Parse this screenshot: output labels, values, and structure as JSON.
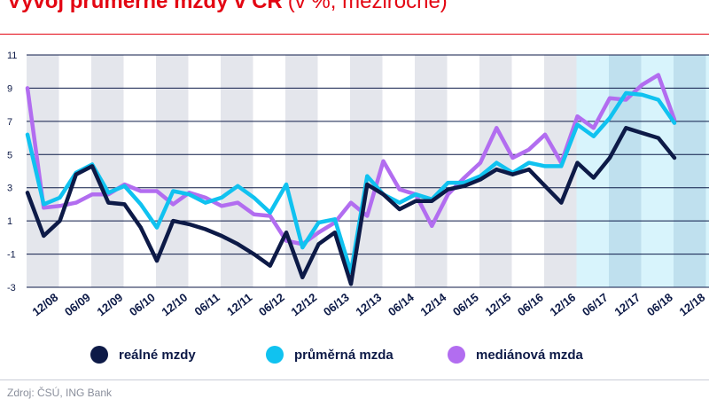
{
  "title": {
    "main": "Vývoj průměrné mzdy v ČR",
    "sub": "(v %, meziročně)"
  },
  "source": "Zdroj: ČSÚ, ING Bank",
  "chart_data": {
    "type": "line",
    "title": "Vývoj průměrné mzdy v ČR",
    "subtitle": "(v %, meziročně)",
    "xlabel": "",
    "ylabel": "",
    "ylim": [
      -3,
      11
    ],
    "yticks": [
      -3,
      -1,
      1,
      3,
      5,
      7,
      9,
      11
    ],
    "grid": true,
    "legend_position": "bottom",
    "x": [
      "Q3 2008",
      "Q4 2008",
      "Q1 2009",
      "Q2 2009",
      "Q3 2009",
      "Q4 2009",
      "Q1 2010",
      "Q2 2010",
      "Q3 2010",
      "Q4 2010",
      "Q1 2011",
      "Q2 2011",
      "Q3 2011",
      "Q4 2011",
      "Q1 2012",
      "Q2 2012",
      "Q3 2012",
      "Q4 2012",
      "Q1 2013",
      "Q2 2013",
      "Q3 2013",
      "Q4 2013",
      "Q1 2014",
      "Q2 2014",
      "Q3 2014",
      "Q4 2014",
      "Q1 2015",
      "Q2 2015",
      "Q3 2015",
      "Q4 2015",
      "Q1 2016",
      "Q2 2016",
      "Q3 2016",
      "Q4 2016",
      "Q1 2017",
      "Q2 2017",
      "Q3 2017",
      "Q4 2017",
      "Q1 2018",
      "Q2 2018",
      "Q3 2018"
    ],
    "x_tick_labels": [
      "12/08",
      "06/09",
      "12/09",
      "06/10",
      "12/10",
      "06/11",
      "12/11",
      "06/12",
      "12/12",
      "06/13",
      "12/13",
      "06/14",
      "12/14",
      "06/15",
      "12/15",
      "06/16",
      "12/16",
      "06/17",
      "12/17",
      "06/18",
      "12/18"
    ],
    "series": [
      {
        "name": "reálné mzdy",
        "color": "#0d1a47",
        "values": [
          2.7,
          0.1,
          1.0,
          3.8,
          4.3,
          2.1,
          2.0,
          0.6,
          -1.4,
          1.0,
          0.8,
          0.5,
          0.1,
          -0.4,
          -1.0,
          -1.7,
          0.3,
          -2.4,
          -0.4,
          0.3,
          -2.8,
          3.2,
          2.6,
          1.7,
          2.2,
          2.2,
          2.9,
          3.1,
          3.5,
          4.1,
          3.8,
          4.1,
          3.1,
          2.1,
          4.5,
          3.6,
          4.8,
          6.6,
          6.3,
          6.0,
          4.8
        ]
      },
      {
        "name": "průměrná mzda",
        "color": "#10c2f0",
        "values": [
          6.2,
          2.0,
          2.4,
          3.9,
          4.4,
          2.7,
          3.1,
          2.0,
          0.6,
          2.8,
          2.6,
          2.1,
          2.4,
          3.1,
          2.4,
          1.5,
          3.2,
          -0.6,
          0.9,
          1.1,
          -2.1,
          3.7,
          2.6,
          2.1,
          2.6,
          2.3,
          3.3,
          3.3,
          3.7,
          4.5,
          3.9,
          4.5,
          4.3,
          4.3,
          6.8,
          6.1,
          7.2,
          8.7,
          8.6,
          8.3,
          6.9
        ]
      },
      {
        "name": "mediánová mzda",
        "color": "#b26df0",
        "values": [
          9.0,
          1.8,
          1.9,
          2.1,
          2.6,
          2.6,
          3.2,
          2.8,
          2.8,
          2.0,
          2.7,
          2.4,
          1.9,
          2.1,
          1.4,
          1.3,
          -0.2,
          -0.4,
          0.3,
          0.9,
          2.1,
          1.3,
          4.6,
          2.9,
          2.6,
          0.7,
          2.6,
          3.6,
          4.5,
          6.6,
          4.8,
          5.3,
          6.2,
          4.5,
          7.3,
          6.6,
          8.4,
          8.3,
          9.2,
          9.8,
          7.1
        ]
      }
    ]
  }
}
